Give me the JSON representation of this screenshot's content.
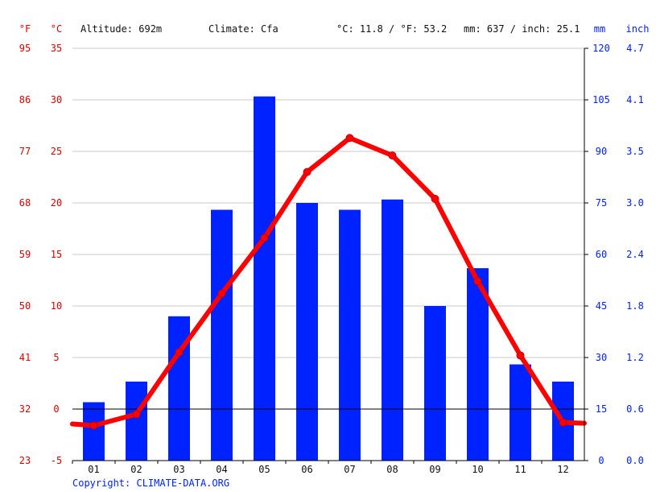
{
  "header": {
    "unit_f": "°F",
    "unit_c": "°C",
    "altitude": "Altitude: 692m",
    "climate": "Climate: Cfa",
    "temp_avg": "°C: 11.8 / °F: 53.2",
    "precip_total": "mm: 637 / inch: 25.1",
    "unit_mm": "mm",
    "unit_inch": "inch"
  },
  "copyright": "Copyright: CLIMATE-DATA.ORG",
  "colors": {
    "temperature": "#ff0000",
    "precipitation": "#0022ff",
    "label_red": "#e00000",
    "label_blue": "#0022ff"
  },
  "chart_data": {
    "type": "bar+line",
    "categories": [
      "01",
      "02",
      "03",
      "04",
      "05",
      "06",
      "07",
      "08",
      "09",
      "10",
      "11",
      "12"
    ],
    "series": [
      {
        "type": "bar",
        "axis": "right",
        "unit": "mm",
        "values": [
          17,
          23,
          42,
          73,
          106,
          75,
          73,
          76,
          45,
          56,
          28,
          23
        ]
      },
      {
        "type": "line",
        "axis": "left",
        "unit": "°C",
        "values": [
          -1.6,
          -0.5,
          5.5,
          11.2,
          16.6,
          23.0,
          26.3,
          24.6,
          20.4,
          12.4,
          5.2,
          -1.3
        ]
      }
    ],
    "y_left_c": {
      "ticks": [
        -5,
        0,
        5,
        10,
        15,
        20,
        25,
        30,
        35
      ],
      "range": [
        -5,
        35
      ]
    },
    "y_left_f": {
      "ticks": [
        23,
        32,
        41,
        50,
        59,
        68,
        77,
        86,
        95
      ]
    },
    "y_right_mm": {
      "ticks": [
        0,
        15,
        30,
        45,
        60,
        75,
        90,
        105,
        120
      ],
      "range": [
        0,
        120
      ]
    },
    "y_right_inch": {
      "ticks": [
        "0.0",
        "0.6",
        "1.2",
        "1.8",
        "2.4",
        "3.0",
        "3.5",
        "4.1",
        "4.7"
      ]
    },
    "grid": true
  }
}
